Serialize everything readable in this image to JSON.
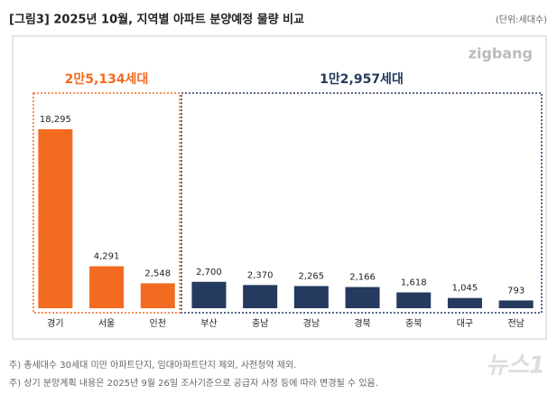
{
  "chart_data": {
    "type": "bar",
    "title": "[그림3] 2025년 10월, 지역별 아파트 분양예정 물량 비교",
    "unit": "(단위:세대수)",
    "logo": "zigbang",
    "categories": [
      "경기",
      "서울",
      "인천",
      "부산",
      "충남",
      "경남",
      "경북",
      "충북",
      "대구",
      "전남"
    ],
    "values": [
      18295,
      4291,
      2548,
      2700,
      2370,
      2265,
      2166,
      1618,
      1045,
      793
    ],
    "value_labels": [
      "18,295",
      "4,291",
      "2,548",
      "2,700",
      "2,370",
      "2,265",
      "2,166",
      "1,618",
      "1,045",
      "793"
    ],
    "colors": [
      "#f26b21",
      "#f26b21",
      "#f26b21",
      "#243a5e",
      "#243a5e",
      "#243a5e",
      "#243a5e",
      "#243a5e",
      "#243a5e",
      "#243a5e"
    ],
    "groups": [
      {
        "label": "2만5,134세대",
        "color": "#f26b21"
      },
      {
        "label": "1만2,957세대",
        "color": "#243a5e"
      }
    ],
    "notes": [
      "주) 총세대수 30세대 미만 아파트단지, 임대아파트단지 제외, 사전청약 제외.",
      "주) 상기 분양계획 내용은 2025년 9월 26일 조사기준으로 공급자 사정 등에 따라 변경될 수 있음."
    ],
    "watermark": "뉴스1"
  }
}
